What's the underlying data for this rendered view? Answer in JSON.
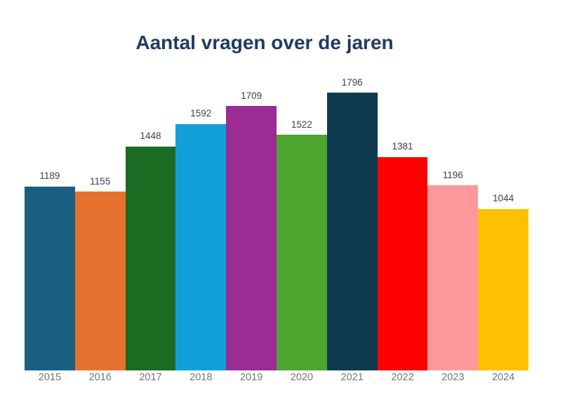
{
  "page": {
    "background": "#ffffff"
  },
  "chart_data": {
    "type": "bar",
    "title": "Aantal vragen over de jaren",
    "categories": [
      "2015",
      "2016",
      "2017",
      "2018",
      "2019",
      "2020",
      "2021",
      "2022",
      "2023",
      "2024"
    ],
    "values": [
      1189,
      1155,
      1448,
      1592,
      1709,
      1522,
      1796,
      1381,
      1196,
      1044
    ],
    "bar_colors": [
      "#185f83",
      "#e7712f",
      "#1c6b22",
      "#11a0d9",
      "#9c2b94",
      "#4ba52e",
      "#0f3a50",
      "#fd0101",
      "#fe989c",
      "#fec000"
    ],
    "xlabel": "",
    "ylabel": "",
    "ylim": [
      0,
      1796
    ],
    "grid": false,
    "legend": "none",
    "data_labels_shown": true,
    "axis_line_shown": false,
    "title_color": "#1f3b63",
    "value_label_color": "#404040",
    "category_label_color": "#757575"
  }
}
